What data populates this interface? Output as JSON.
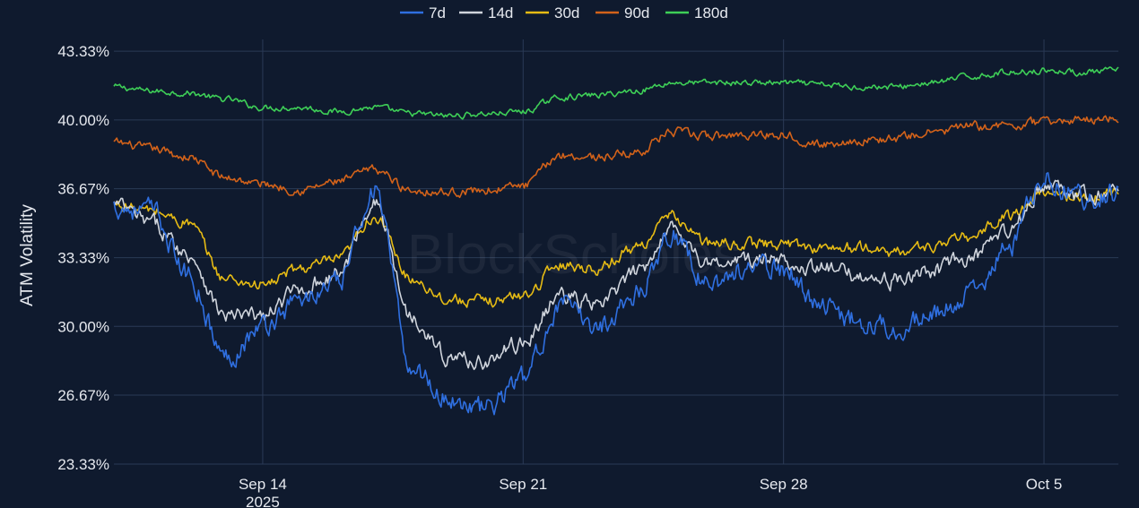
{
  "watermark": "BlockScholes",
  "chart_data": {
    "type": "line",
    "title": "",
    "xlabel": "",
    "ylabel": "ATM Volatility",
    "ylim": [
      23.33,
      43.9
    ],
    "y_ticks": [
      23.33,
      26.67,
      30.0,
      33.33,
      36.67,
      40.0,
      43.33
    ],
    "y_tick_labels": [
      "23.33%",
      "26.67%",
      "30.00%",
      "33.33%",
      "36.67%",
      "40.00%",
      "43.33%"
    ],
    "xlim": [
      "2025-09-10",
      "2025-10-07"
    ],
    "x_ticks": [
      "2025-09-14",
      "2025-09-21",
      "2025-09-28",
      "2025-10-05"
    ],
    "x_tick_labels": [
      "Sep 14",
      "Sep 21",
      "Sep 28",
      "Oct 5"
    ],
    "x_tick_sublabel": "2025",
    "grid": true,
    "legend_position": "top-center",
    "x": [
      "2025-09-10",
      "2025-09-11",
      "2025-09-12",
      "2025-09-13",
      "2025-09-14",
      "2025-09-15",
      "2025-09-16",
      "2025-09-17",
      "2025-09-18",
      "2025-09-19",
      "2025-09-20",
      "2025-09-21",
      "2025-09-22",
      "2025-09-23",
      "2025-09-24",
      "2025-09-25",
      "2025-09-26",
      "2025-09-27",
      "2025-09-28",
      "2025-09-29",
      "2025-09-30",
      "2025-10-01",
      "2025-10-02",
      "2025-10-03",
      "2025-10-04",
      "2025-10-05",
      "2025-10-06",
      "2025-10-07"
    ],
    "series": [
      {
        "name": "7d",
        "color": "#2f6fe0",
        "values": [
          35.8,
          35.6,
          32.5,
          28.5,
          30.0,
          31.3,
          32.0,
          36.6,
          28.0,
          26.5,
          26.0,
          27.5,
          31.0,
          30.0,
          31.5,
          34.5,
          32.0,
          32.8,
          32.8,
          31.0,
          30.3,
          30.0,
          30.5,
          31.5,
          33.6,
          37.2,
          36.2,
          36.5
        ]
      },
      {
        "name": "14d",
        "color": "#cfd4dc",
        "values": [
          35.9,
          35.0,
          33.5,
          30.5,
          30.5,
          31.8,
          32.5,
          36.0,
          30.5,
          28.5,
          28.3,
          29.2,
          31.5,
          31.0,
          32.5,
          34.8,
          33.0,
          33.2,
          33.2,
          32.8,
          32.5,
          32.2,
          32.7,
          33.3,
          34.5,
          36.8,
          36.3,
          36.5
        ]
      },
      {
        "name": "30d",
        "color": "#e6bb14",
        "values": [
          35.9,
          35.6,
          35.0,
          32.3,
          32.0,
          32.8,
          33.2,
          35.3,
          32.3,
          31.3,
          31.2,
          31.5,
          33.0,
          32.8,
          33.8,
          35.3,
          34.0,
          34.0,
          34.0,
          33.8,
          33.8,
          33.6,
          33.9,
          34.3,
          35.3,
          36.5,
          36.2,
          36.5
        ]
      },
      {
        "name": "90d",
        "color": "#d2621a",
        "values": [
          38.9,
          38.6,
          38.2,
          37.2,
          36.9,
          36.6,
          37.0,
          37.6,
          36.6,
          36.5,
          36.6,
          36.8,
          38.3,
          38.2,
          38.4,
          39.4,
          39.2,
          39.3,
          39.3,
          38.8,
          39.0,
          39.1,
          39.4,
          39.7,
          39.7,
          39.9,
          40.0,
          40.1
        ]
      },
      {
        "name": "180d",
        "color": "#3ecf57",
        "values": [
          41.6,
          41.4,
          41.3,
          41.0,
          40.6,
          40.6,
          40.4,
          40.6,
          40.3,
          40.2,
          40.3,
          40.4,
          41.1,
          41.2,
          41.4,
          41.8,
          41.8,
          41.8,
          41.8,
          41.7,
          41.6,
          41.6,
          41.8,
          42.1,
          42.3,
          42.4,
          42.3,
          42.4
        ]
      }
    ]
  }
}
